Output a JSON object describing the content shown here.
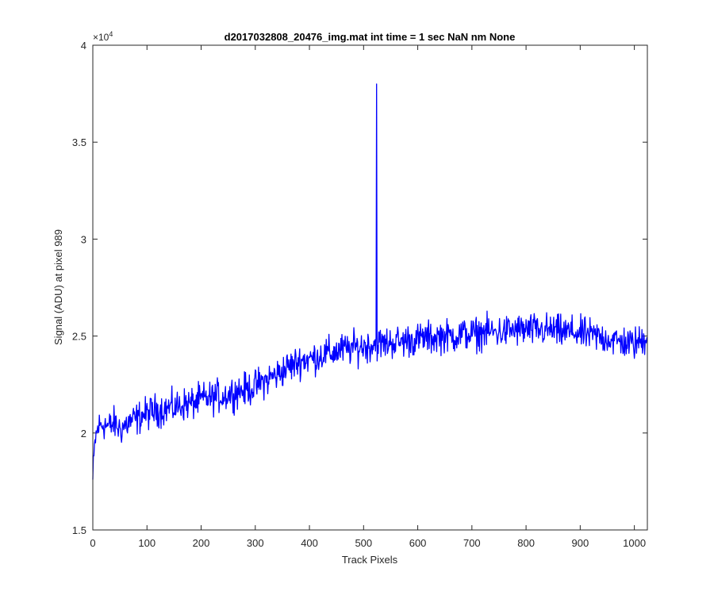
{
  "chart_data": {
    "type": "line",
    "title": "d2017032808_20476_img.mat int time = 1 sec  NaN nm None",
    "xlabel": "Track Pixels",
    "ylabel": "Signal (ADU) at pixel 989",
    "y_exponent_label": "×10",
    "y_exponent_power": "4",
    "xlim": [
      0,
      1024
    ],
    "ylim": [
      15000,
      40000
    ],
    "x_ticks": [
      0,
      100,
      200,
      300,
      400,
      500,
      600,
      700,
      800,
      900,
      1000
    ],
    "x_tick_labels": [
      "0",
      "100",
      "200",
      "300",
      "400",
      "500",
      "600",
      "700",
      "800",
      "900",
      "1000"
    ],
    "y_ticks": [
      15000,
      20000,
      25000,
      30000,
      35000,
      40000
    ],
    "y_tick_labels": [
      "1.5",
      "2",
      "2.5",
      "3",
      "3.5",
      "4"
    ],
    "grid": false,
    "line_color": "#0000ff",
    "series": [
      {
        "x": [
          0,
          4,
          10,
          20,
          30,
          40,
          50,
          60,
          70,
          80,
          90,
          100,
          110,
          120,
          130,
          140,
          150,
          160,
          170,
          180,
          190,
          200,
          210,
          220,
          230,
          240,
          250,
          260,
          270,
          280,
          290,
          300,
          310,
          320,
          330,
          340,
          350,
          360,
          370,
          380,
          390,
          400,
          410,
          420,
          430,
          440,
          450,
          460,
          470,
          480,
          490,
          500,
          510,
          520,
          524,
          528,
          540,
          550,
          560,
          570,
          580,
          590,
          600,
          610,
          620,
          630,
          640,
          650,
          660,
          670,
          680,
          690,
          700,
          710,
          720,
          730,
          740,
          750,
          760,
          770,
          780,
          790,
          800,
          810,
          820,
          830,
          840,
          850,
          860,
          870,
          880,
          890,
          900,
          910,
          920,
          930,
          940,
          950,
          960,
          970,
          980,
          990,
          1000,
          1010,
          1020,
          1024
        ],
        "y": [
          17600,
          19600,
          20300,
          20500,
          20300,
          20500,
          20200,
          20400,
          20600,
          20700,
          20900,
          21000,
          21100,
          21200,
          21200,
          21300,
          21300,
          21400,
          21500,
          21500,
          21600,
          21700,
          21800,
          21800,
          21900,
          21900,
          22000,
          22100,
          22200,
          22200,
          22300,
          22400,
          22600,
          22700,
          22900,
          23000,
          23200,
          23400,
          23500,
          23700,
          23800,
          23800,
          23900,
          24000,
          24100,
          24100,
          24200,
          24300,
          24300,
          24400,
          24400,
          24500,
          24500,
          24600,
          38000,
          24600,
          24600,
          24700,
          24700,
          24700,
          24800,
          24800,
          24800,
          24900,
          24900,
          24900,
          25000,
          25000,
          25000,
          25000,
          25100,
          25100,
          25100,
          25100,
          25200,
          25200,
          25200,
          25200,
          25200,
          25300,
          25300,
          25300,
          25300,
          25300,
          25300,
          25300,
          25300,
          25300,
          25200,
          25200,
          25200,
          25200,
          25100,
          25100,
          25000,
          25000,
          24900,
          24900,
          24800,
          24700,
          24700,
          24600,
          24600,
          24700,
          24900,
          25200
        ],
        "noise_amplitude": 700
      }
    ]
  }
}
